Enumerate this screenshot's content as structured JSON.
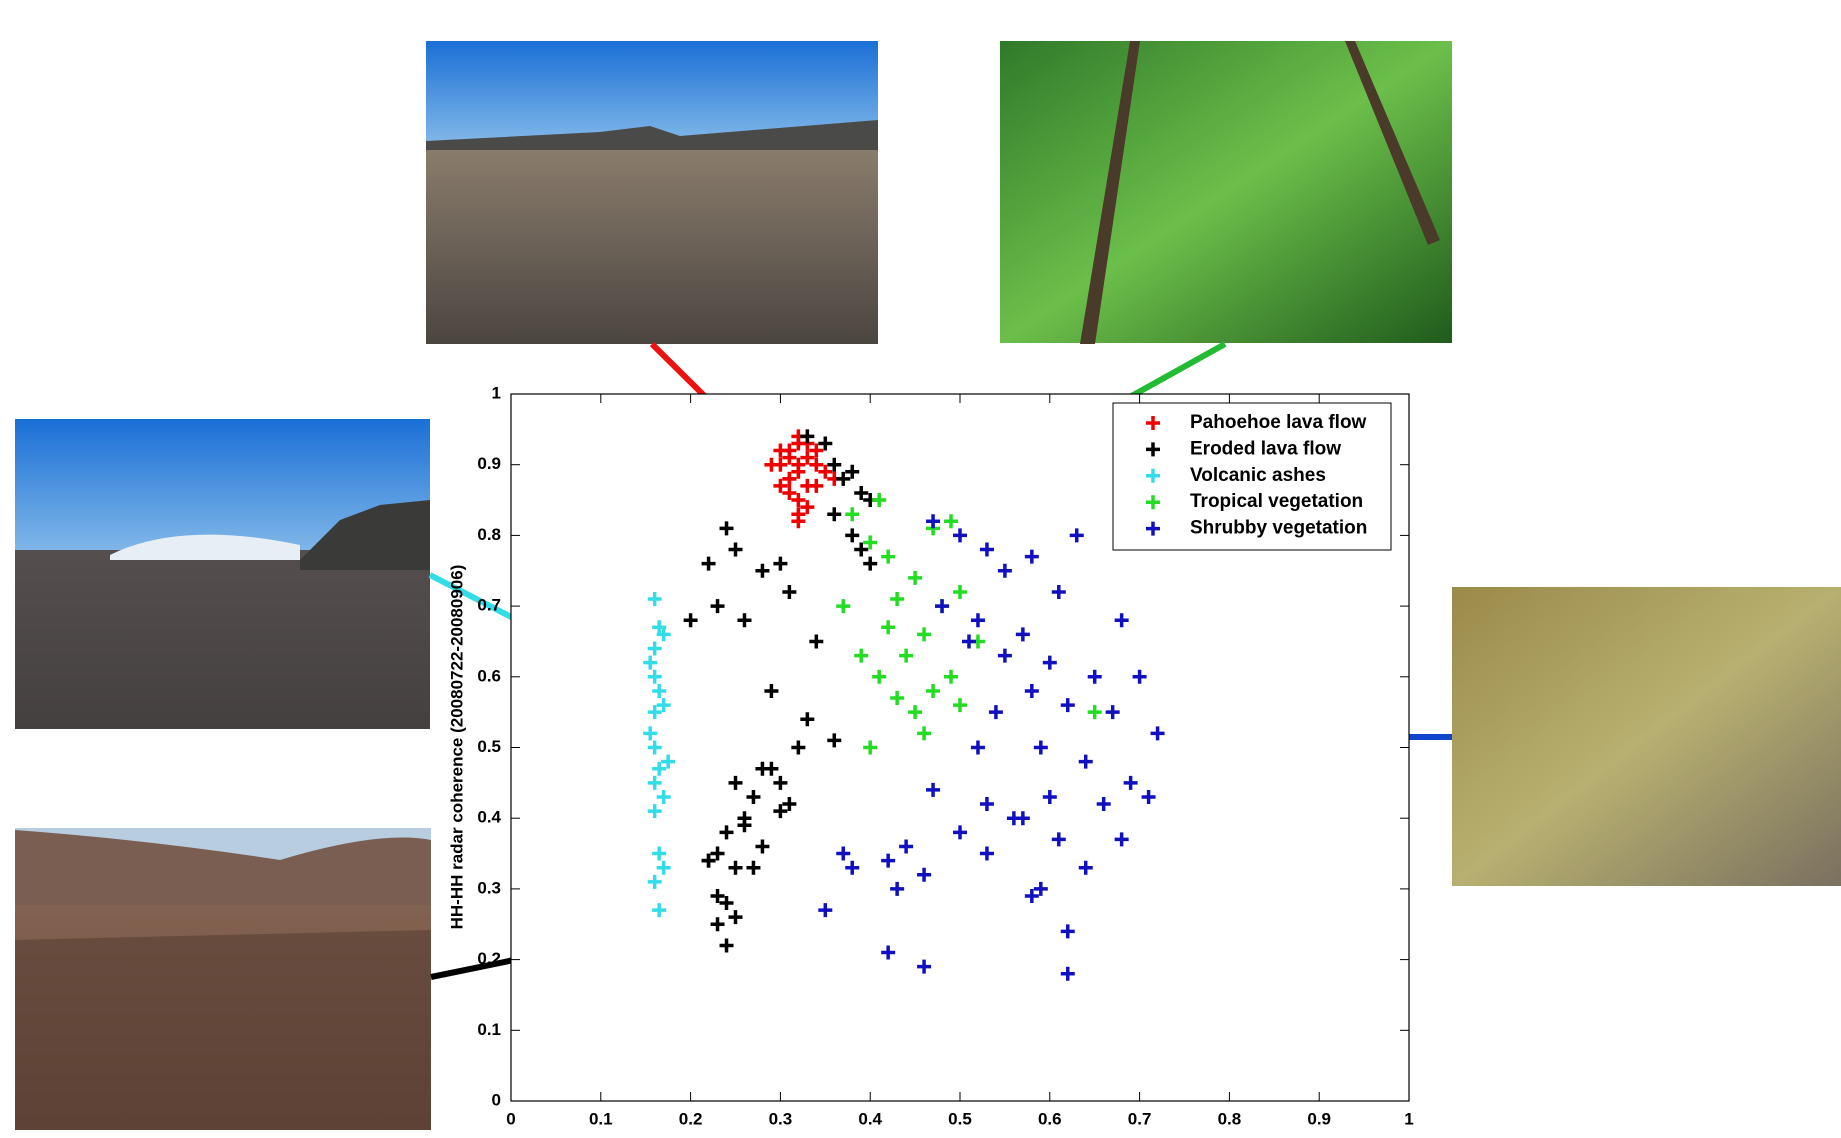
{
  "chart_data": {
    "type": "scatter",
    "ylabel": "HH-HH radar coherence (20080722-20080906)",
    "xlim": [
      0,
      1
    ],
    "ylim": [
      0,
      1
    ],
    "xticks": [
      0,
      0.1,
      0.2,
      0.3,
      0.4,
      0.5,
      0.6,
      0.7,
      0.8,
      0.9,
      1
    ],
    "yticks": [
      0,
      0.1,
      0.2,
      0.3,
      0.4,
      0.5,
      0.6,
      0.7,
      0.8,
      0.9,
      1
    ],
    "legend": "upper right",
    "series": [
      {
        "name": "Pahoehoe lava flow",
        "color": "#ee0000",
        "x": [
          0.3,
          0.31,
          0.32,
          0.33,
          0.34,
          0.31,
          0.32,
          0.33,
          0.3,
          0.29,
          0.35,
          0.32,
          0.31,
          0.33,
          0.32,
          0.34,
          0.3,
          0.31,
          0.32,
          0.33,
          0.31,
          0.32,
          0.34,
          0.36,
          0.32
        ],
        "values": [
          0.9,
          0.92,
          0.93,
          0.91,
          0.9,
          0.88,
          0.89,
          0.87,
          0.87,
          0.9,
          0.89,
          0.85,
          0.86,
          0.84,
          0.83,
          0.87,
          0.92,
          0.91,
          0.9,
          0.93,
          0.88,
          0.82,
          0.92,
          0.88,
          0.94
        ]
      },
      {
        "name": "Eroded lava flow",
        "color": "#000000",
        "x": [
          0.33,
          0.35,
          0.36,
          0.37,
          0.38,
          0.39,
          0.4,
          0.36,
          0.38,
          0.39,
          0.4,
          0.24,
          0.22,
          0.25,
          0.23,
          0.28,
          0.3,
          0.31,
          0.34,
          0.26,
          0.2,
          0.29,
          0.33,
          0.36,
          0.28,
          0.3,
          0.25,
          0.27,
          0.26,
          0.24,
          0.23,
          0.28,
          0.31,
          0.22,
          0.25,
          0.27,
          0.23,
          0.24,
          0.3,
          0.32,
          0.29,
          0.26,
          0.23,
          0.25,
          0.22,
          0.24
        ],
        "values": [
          0.94,
          0.93,
          0.9,
          0.88,
          0.89,
          0.86,
          0.85,
          0.83,
          0.8,
          0.78,
          0.76,
          0.81,
          0.76,
          0.78,
          0.7,
          0.75,
          0.76,
          0.72,
          0.65,
          0.68,
          0.68,
          0.58,
          0.54,
          0.51,
          0.47,
          0.45,
          0.45,
          0.43,
          0.4,
          0.38,
          0.35,
          0.36,
          0.42,
          0.34,
          0.33,
          0.33,
          0.29,
          0.28,
          0.41,
          0.5,
          0.47,
          0.39,
          0.25,
          0.26,
          0.34,
          0.22
        ]
      },
      {
        "name": "Volcanic ashes",
        "color": "#33dde8",
        "x": [
          0.16,
          0.165,
          0.16,
          0.17,
          0.155,
          0.16,
          0.165,
          0.17,
          0.16,
          0.155,
          0.16,
          0.175,
          0.165,
          0.16,
          0.17,
          0.16,
          0.165,
          0.17,
          0.16,
          0.165
        ],
        "values": [
          0.71,
          0.67,
          0.64,
          0.66,
          0.62,
          0.6,
          0.58,
          0.56,
          0.55,
          0.52,
          0.5,
          0.48,
          0.47,
          0.45,
          0.43,
          0.41,
          0.35,
          0.33,
          0.31,
          0.27
        ]
      },
      {
        "name": "Tropical vegetation",
        "color": "#22dd22",
        "x": [
          0.38,
          0.4,
          0.41,
          0.42,
          0.43,
          0.45,
          0.47,
          0.48,
          0.49,
          0.5,
          0.46,
          0.44,
          0.42,
          0.39,
          0.37,
          0.41,
          0.43,
          0.45,
          0.47,
          0.49,
          0.5,
          0.52,
          0.4,
          0.46,
          0.65
        ],
        "values": [
          0.83,
          0.79,
          0.85,
          0.77,
          0.71,
          0.74,
          0.81,
          0.7,
          0.82,
          0.72,
          0.66,
          0.63,
          0.67,
          0.63,
          0.7,
          0.6,
          0.57,
          0.55,
          0.58,
          0.6,
          0.56,
          0.65,
          0.5,
          0.52,
          0.55
        ]
      },
      {
        "name": "Shrubby vegetation",
        "color": "#1010c0",
        "x": [
          0.47,
          0.5,
          0.53,
          0.55,
          0.58,
          0.61,
          0.63,
          0.52,
          0.57,
          0.6,
          0.65,
          0.68,
          0.7,
          0.67,
          0.72,
          0.62,
          0.58,
          0.55,
          0.51,
          0.48,
          0.54,
          0.59,
          0.64,
          0.69,
          0.66,
          0.6,
          0.56,
          0.53,
          0.47,
          0.5,
          0.44,
          0.42,
          0.46,
          0.53,
          0.57,
          0.61,
          0.64,
          0.68,
          0.43,
          0.38,
          0.35,
          0.37,
          0.58,
          0.62,
          0.46,
          0.42,
          0.59,
          0.62,
          0.71,
          0.52
        ],
        "values": [
          0.82,
          0.8,
          0.78,
          0.75,
          0.77,
          0.72,
          0.8,
          0.68,
          0.66,
          0.62,
          0.6,
          0.68,
          0.6,
          0.55,
          0.52,
          0.56,
          0.58,
          0.63,
          0.65,
          0.7,
          0.55,
          0.5,
          0.48,
          0.45,
          0.42,
          0.43,
          0.4,
          0.42,
          0.44,
          0.38,
          0.36,
          0.34,
          0.32,
          0.35,
          0.4,
          0.37,
          0.33,
          0.37,
          0.3,
          0.33,
          0.27,
          0.35,
          0.29,
          0.24,
          0.19,
          0.21,
          0.3,
          0.18,
          0.43,
          0.5
        ]
      }
    ]
  }
}
